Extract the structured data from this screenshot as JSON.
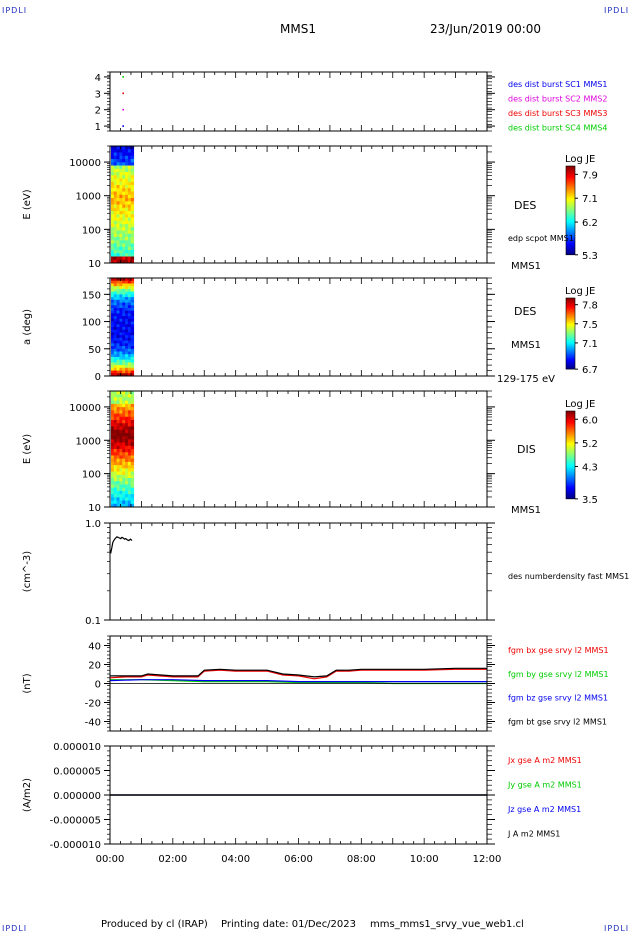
{
  "header": {
    "corner_tl": "IPDLI",
    "corner_tr": "IPDLI",
    "corner_bl": "IPDLI",
    "corner_br": "IPDLI",
    "title": "MMS1",
    "datetime": "23/Jun/2019 00:00"
  },
  "footer": {
    "produced": "Produced by cl (IRAP)",
    "printing": "Printing date: 01/Dec/2023",
    "file": "mms_mms1_srvy_vue_web1.cl"
  },
  "colors": {
    "mms1": "#0000ee",
    "mms2": "#dd00dd",
    "mms3": "#ee0000",
    "mms4": "#00cc00",
    "black": "#000000"
  },
  "chart_data": [
    {
      "type": "scatter",
      "panel": "burst",
      "ylabel": "",
      "ylim": [
        0.7,
        4.3
      ],
      "yticks": [
        1,
        2,
        3,
        4
      ],
      "yticklabels": [
        "1",
        "2",
        "3",
        "4"
      ],
      "series": [
        {
          "name": "des dist burst SC1 MMS1",
          "color": "#0000ee",
          "points": [
            [
              0.42,
              1
            ]
          ]
        },
        {
          "name": "des dist burst SC2 MMS2",
          "color": "#dd00dd",
          "points": [
            [
              0.42,
              2
            ]
          ]
        },
        {
          "name": "des dist burst SC3 MMS3",
          "color": "#ee0000",
          "points": [
            [
              0.42,
              3
            ]
          ]
        },
        {
          "name": "des dist burst SC4 MMS4",
          "color": "#00cc00",
          "points": [
            [
              0.42,
              4
            ]
          ]
        }
      ]
    },
    {
      "type": "heatmap",
      "panel": "des_energy",
      "ylabel": "E (eV)",
      "scale": "log",
      "ylim": [
        10,
        30000
      ],
      "yticks": [
        10,
        100,
        1000,
        10000
      ],
      "yticklabels": [
        "10",
        "100",
        "1000",
        "10000"
      ],
      "x_extent_hours": [
        0,
        0.75
      ],
      "right_labels": [
        "DES",
        "edp scpot MMS1",
        "MMS1"
      ],
      "colorbar": {
        "title": "Log JE",
        "ticks": [
          "7.9",
          "7.1",
          "6.2",
          "5.3"
        ],
        "range": [
          5.3,
          8.2
        ]
      }
    },
    {
      "type": "heatmap",
      "panel": "des_pitch",
      "ylabel": "a (deg)",
      "ylim": [
        0,
        180
      ],
      "yticks": [
        0,
        50,
        100,
        150
      ],
      "yticklabels": [
        "0",
        "50",
        "100",
        "150"
      ],
      "x_extent_hours": [
        0,
        0.75
      ],
      "right_labels": [
        "DES",
        "MMS1",
        "129-175 eV"
      ],
      "colorbar": {
        "title": "Log JE",
        "ticks": [
          "7.8",
          "7.5",
          "7.1",
          "6.7"
        ],
        "range": [
          6.7,
          7.9
        ]
      }
    },
    {
      "type": "heatmap",
      "panel": "dis_energy",
      "ylabel": "E (eV)",
      "scale": "log",
      "ylim": [
        10,
        30000
      ],
      "yticks": [
        10,
        100,
        1000,
        10000
      ],
      "yticklabels": [
        "10",
        "100",
        "1000",
        "10000"
      ],
      "x_extent_hours": [
        0,
        0.75
      ],
      "right_labels": [
        "DIS",
        "MMS1"
      ],
      "colorbar": {
        "title": "Log JE",
        "ticks": [
          "6.0",
          "5.2",
          "4.3",
          "3.5"
        ],
        "range": [
          3.5,
          6.3
        ]
      }
    },
    {
      "type": "line",
      "panel": "density",
      "ylabel": "(cm^-3)",
      "scale": "log",
      "ylim": [
        0.1,
        1.0
      ],
      "yticks": [
        0.1,
        1.0
      ],
      "yticklabels": [
        "0.1",
        "1.0"
      ],
      "series": [
        {
          "name": "des numberdensity fast MMS1",
          "color": "#000000",
          "x": [
            0.0,
            0.03,
            0.06,
            0.09,
            0.12,
            0.15,
            0.18,
            0.22,
            0.26,
            0.3,
            0.34,
            0.38,
            0.42,
            0.46,
            0.5,
            0.55,
            0.6,
            0.65,
            0.7
          ],
          "y": [
            0.52,
            0.5,
            0.56,
            0.63,
            0.66,
            0.68,
            0.7,
            0.72,
            0.71,
            0.7,
            0.69,
            0.71,
            0.7,
            0.68,
            0.69,
            0.67,
            0.66,
            0.68,
            0.66
          ]
        }
      ]
    },
    {
      "type": "line",
      "panel": "fgm",
      "ylabel": "(nT)",
      "ylim": [
        -50,
        50
      ],
      "yticks": [
        -40,
        -20,
        0,
        20,
        40
      ],
      "yticklabels": [
        "-40",
        "-20",
        "0",
        "20",
        "40"
      ],
      "series": [
        {
          "name": "fgm bx gse srvy l2 MMS1",
          "color": "#ee0000",
          "x": [
            0,
            0.5,
            1.0,
            1.2,
            2.0,
            2.8,
            3.0,
            3.5,
            4.0,
            4.5,
            5.0,
            5.5,
            6.0,
            6.5,
            6.9,
            7.2,
            7.6,
            8.0,
            9.0,
            10.0,
            11.0,
            12.0
          ],
          "y": [
            6,
            7,
            7,
            9,
            7,
            7,
            13,
            14,
            13,
            13,
            13,
            9,
            8,
            5,
            7,
            13,
            13,
            14,
            14,
            14,
            15,
            15
          ]
        },
        {
          "name": "fgm by gse srvy l2 MMS1",
          "color": "#00cc00",
          "x": [
            0,
            1.0,
            2.0,
            3.0,
            4.0,
            5.0,
            6.0,
            7.0,
            8.0,
            9.0,
            10.0,
            11.0,
            12.0
          ],
          "y": [
            4,
            4,
            3,
            2,
            2,
            2,
            1,
            1,
            1,
            0,
            0,
            0,
            0
          ]
        },
        {
          "name": "fgm bz gse srvy l2 MMS1",
          "color": "#0000ee",
          "x": [
            0,
            1.0,
            2.0,
            3.0,
            4.0,
            5.0,
            6.0,
            7.0,
            8.0,
            9.0,
            10.0,
            11.0,
            12.0
          ],
          "y": [
            3,
            4,
            4,
            3,
            3,
            3,
            2,
            2,
            2,
            2,
            2,
            2,
            2
          ]
        },
        {
          "name": "fgm bt gse srvy l2 MMS1",
          "color": "#000000",
          "x": [
            0,
            0.5,
            1.0,
            1.2,
            2.0,
            2.8,
            3.0,
            3.5,
            4.0,
            4.5,
            5.0,
            5.5,
            6.0,
            6.5,
            6.9,
            7.2,
            7.6,
            8.0,
            9.0,
            10.0,
            11.0,
            12.0
          ],
          "y": [
            8,
            8,
            8,
            10,
            8,
            8,
            14,
            15,
            14,
            14,
            14,
            10,
            9,
            7,
            8,
            14,
            14,
            15,
            15,
            15,
            16,
            16
          ]
        }
      ]
    },
    {
      "type": "line",
      "panel": "current",
      "ylabel": "(A/m2)",
      "ylim": [
        -1e-05,
        1e-05
      ],
      "yticks": [
        -1e-05,
        -5e-06,
        0,
        5e-06,
        1e-05
      ],
      "yticklabels": [
        "-0.000010",
        "-0.000005",
        "0.000000",
        "0.000005",
        "0.000010"
      ],
      "series": [
        {
          "name": "Jx gse A m2 MMS1",
          "color": "#ee0000",
          "x": [
            0,
            12
          ],
          "y": [
            0,
            0
          ]
        },
        {
          "name": "Jy gse A m2 MMS1",
          "color": "#00cc00",
          "x": [
            0,
            12
          ],
          "y": [
            0,
            0
          ]
        },
        {
          "name": "Jz gse A m2 MMS1",
          "color": "#0000ee",
          "x": [
            0,
            12
          ],
          "y": [
            0,
            0
          ]
        },
        {
          "name": "J A m2 MMS1",
          "color": "#000000",
          "x": [
            0,
            12
          ],
          "y": [
            0,
            0
          ]
        }
      ]
    }
  ],
  "xaxis": {
    "xlim": [
      0,
      12
    ],
    "ticks": [
      0,
      2,
      4,
      6,
      8,
      10,
      12
    ],
    "ticklabels": [
      "00:00",
      "02:00",
      "04:00",
      "06:00",
      "08:00",
      "10:00",
      "12:00"
    ]
  }
}
